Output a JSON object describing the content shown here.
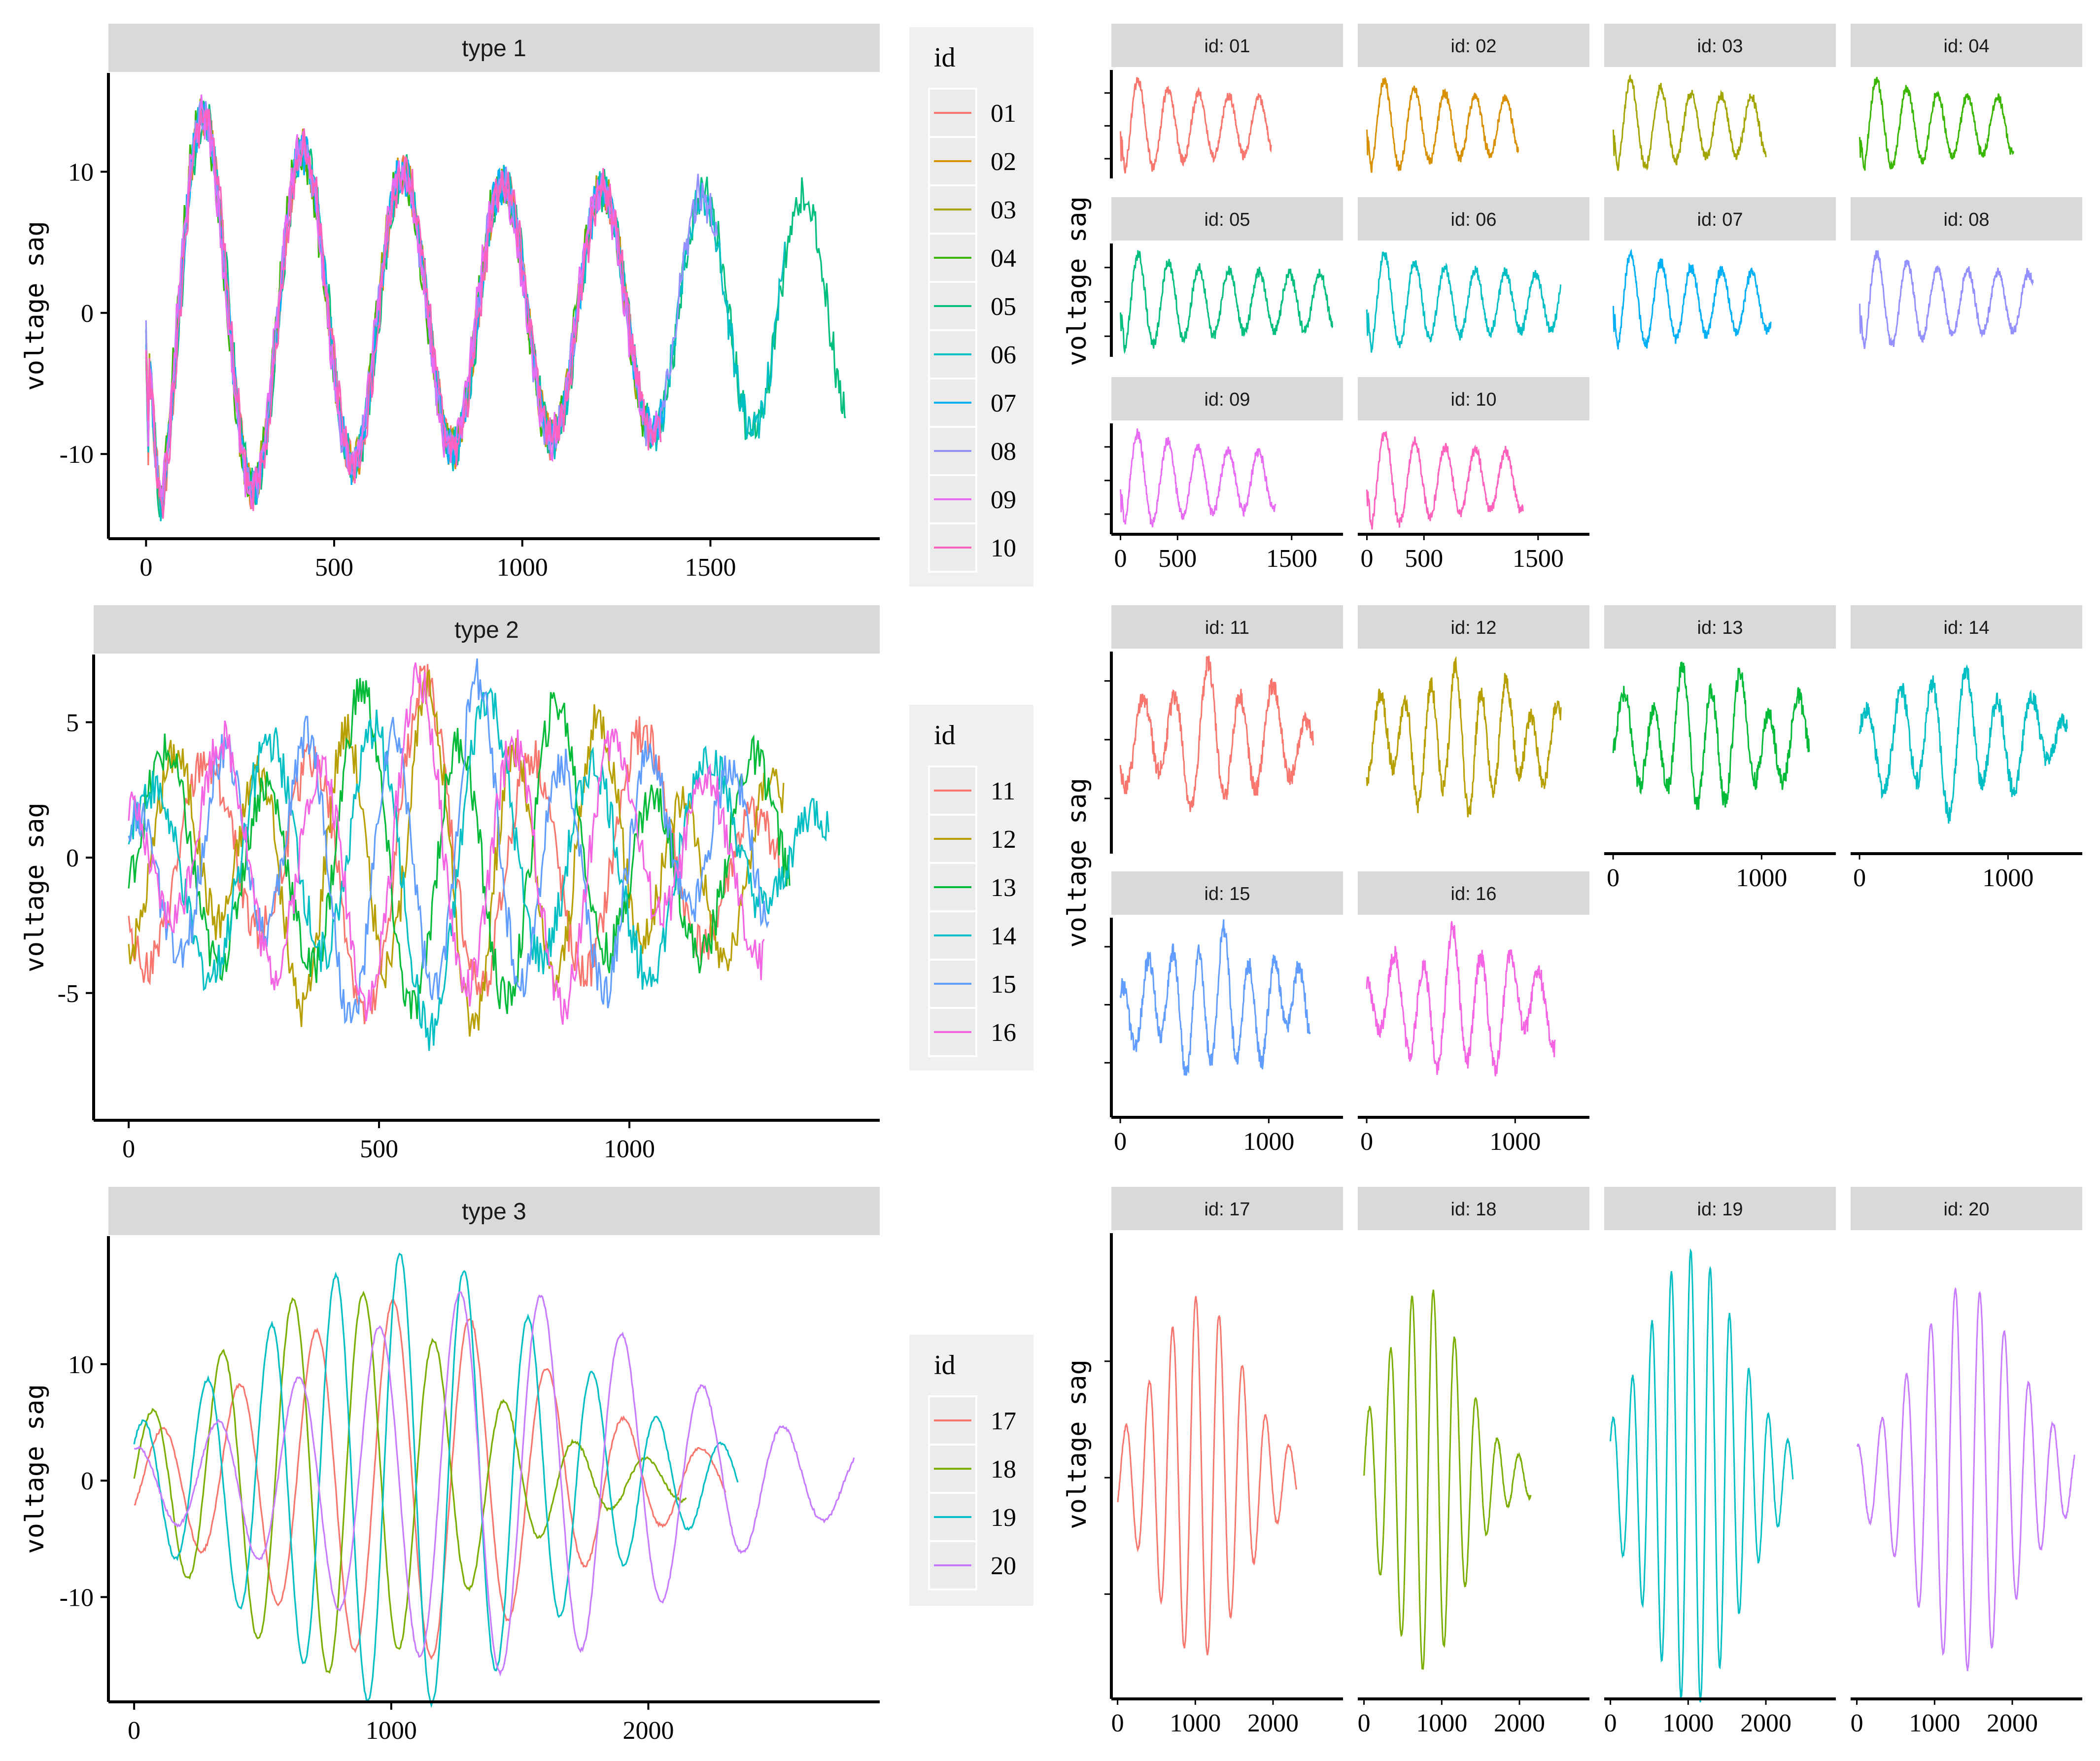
{
  "figure": {
    "y_axis_label": "voltage sag",
    "legend_title": "id"
  },
  "colors": {
    "01": "#F8766D",
    "02": "#D89000",
    "03": "#A3A500",
    "04": "#39B600",
    "05": "#00BF7D",
    "06": "#00BFC4",
    "07": "#00B0F6",
    "08": "#9590FF",
    "09": "#E76BF3",
    "10": "#FF62BC",
    "11": "#F8766D",
    "12": "#B79F00",
    "13": "#00BA38",
    "14": "#00BFC4",
    "15": "#619CFF",
    "16": "#F564E3",
    "17": "#F8766D",
    "18": "#7CAE00",
    "19": "#00BFC4",
    "20": "#C77CFF"
  },
  "chart_data": [
    {
      "type": "line",
      "title": "type 1",
      "xlabel": "",
      "ylabel": "voltage sag",
      "xlim": [
        -100,
        1950
      ],
      "ylim": [
        -16,
        17
      ],
      "x_ticks": [
        0,
        500,
        1000,
        1500
      ],
      "y_ticks": [
        -10,
        0,
        10
      ],
      "legend": {
        "title": "id",
        "entries": [
          "01",
          "02",
          "03",
          "04",
          "05",
          "06",
          "07",
          "08",
          "09",
          "10"
        ]
      },
      "series": [
        {
          "name": "01",
          "length": 1320
        },
        {
          "name": "02",
          "length": 1330
        },
        {
          "name": "03",
          "length": 1340
        },
        {
          "name": "04",
          "length": 1350
        },
        {
          "name": "05",
          "length": 1860
        },
        {
          "name": "06",
          "length": 1700
        },
        {
          "name": "07",
          "length": 1380
        },
        {
          "name": "08",
          "length": 1520
        },
        {
          "name": "09",
          "length": 1360
        },
        {
          "name": "10",
          "length": 1370
        }
      ],
      "facets": [
        {
          "title": "id: 01",
          "series": "01"
        },
        {
          "title": "id: 02",
          "series": "02"
        },
        {
          "title": "id: 03",
          "series": "03"
        },
        {
          "title": "id: 04",
          "series": "04"
        },
        {
          "title": "id: 05",
          "series": "05"
        },
        {
          "title": "id: 06",
          "series": "06"
        },
        {
          "title": "id: 07",
          "series": "07"
        },
        {
          "title": "id: 08",
          "series": "08"
        },
        {
          "title": "id: 09",
          "series": "09"
        },
        {
          "title": "id: 10",
          "series": "10"
        }
      ],
      "facet_x_ticks": [
        0,
        500,
        1500
      ],
      "facet_xlim": [
        -80,
        1950
      ]
    },
    {
      "type": "line",
      "title": "type 2",
      "xlabel": "",
      "ylabel": "voltage sag",
      "xlim": [
        -70,
        1500
      ],
      "ylim": [
        -9.7,
        7.5
      ],
      "x_ticks": [
        0,
        500,
        1000
      ],
      "y_ticks": [
        -5,
        0,
        5
      ],
      "legend": {
        "title": "id",
        "entries": [
          "11",
          "12",
          "13",
          "14",
          "15",
          "16"
        ]
      },
      "series": [
        {
          "name": "11",
          "length": 1300
        },
        {
          "name": "12",
          "length": 1310
        },
        {
          "name": "13",
          "length": 1320
        },
        {
          "name": "14",
          "length": 1400
        },
        {
          "name": "15",
          "length": 1280
        },
        {
          "name": "16",
          "length": 1270
        }
      ],
      "facets": [
        {
          "title": "id: 11",
          "series": "11"
        },
        {
          "title": "id: 12",
          "series": "12"
        },
        {
          "title": "id: 13",
          "series": "13"
        },
        {
          "title": "id: 14",
          "series": "14"
        },
        {
          "title": "id: 15",
          "series": "15"
        },
        {
          "title": "id: 16",
          "series": "16"
        }
      ],
      "facet_x_ticks": [
        0,
        1000
      ],
      "facet_xlim": [
        -60,
        1500
      ]
    },
    {
      "type": "line",
      "title": "type 3",
      "xlabel": "",
      "ylabel": "voltage sag",
      "xlim": [
        -100,
        2900
      ],
      "ylim": [
        -19,
        21
      ],
      "x_ticks": [
        0,
        1000,
        2000
      ],
      "y_ticks": [
        -10,
        0,
        10
      ],
      "legend": {
        "title": "id",
        "entries": [
          "17",
          "18",
          "19",
          "20"
        ]
      },
      "series": [
        {
          "name": "17",
          "length": 2300
        },
        {
          "name": "18",
          "length": 2150
        },
        {
          "name": "19",
          "length": 2350
        },
        {
          "name": "20",
          "length": 2800
        }
      ],
      "facets": [
        {
          "title": "id: 17",
          "series": "17"
        },
        {
          "title": "id: 18",
          "series": "18"
        },
        {
          "title": "id: 19",
          "series": "19"
        },
        {
          "title": "id: 20",
          "series": "20"
        }
      ],
      "facet_x_ticks": [
        0,
        1000,
        2000
      ],
      "facet_xlim": [
        -80,
        2900
      ]
    }
  ]
}
